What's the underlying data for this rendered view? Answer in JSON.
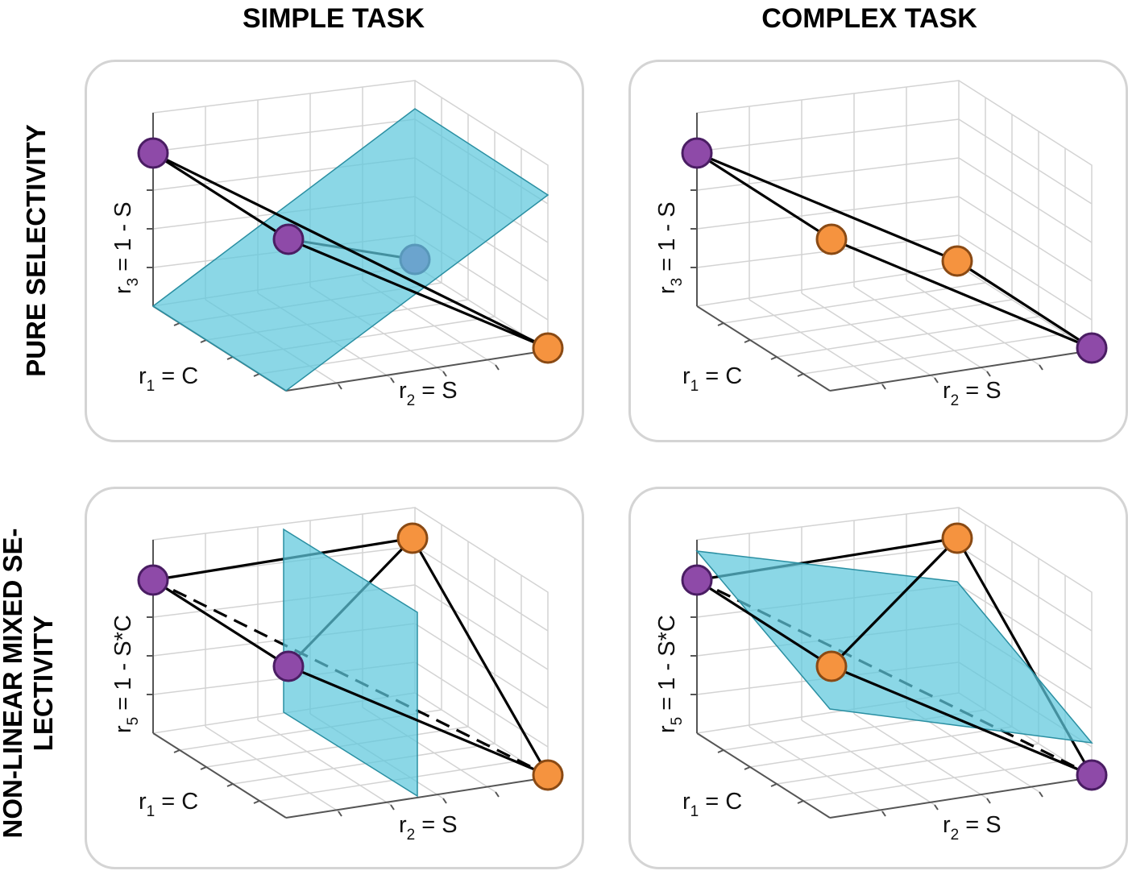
{
  "columns": {
    "left": "SIMPLE TASK",
    "right": "COMPLEX TASK"
  },
  "rows": {
    "top": "PURE SELECTIVITY",
    "bottom_line1": "NON-LINEAR MIXED SE-",
    "bottom_line2": "LECTIVITY"
  },
  "axes": {
    "r1": {
      "name": "r",
      "sub": "1",
      "expr": " = C"
    },
    "r2": {
      "name": "r",
      "sub": "2",
      "expr": " = S"
    },
    "r3": {
      "name": "r",
      "sub": "3",
      "expr": " = 1 - S"
    },
    "r5": {
      "name": "r",
      "sub": "5",
      "expr": " = 1 - S*C"
    }
  },
  "colors": {
    "purple": "#8e4aa8",
    "purple_stroke": "#4a1d63",
    "orange": "#f5933f",
    "orange_stroke": "#8a4a14",
    "plane": "#5ec7dc",
    "plane_stroke": "#2a8fa2",
    "grid": "#cfcfcf",
    "axis": "#555555",
    "panel_border": "#d4d4d4"
  },
  "panels": [
    {
      "id": "simple-pure",
      "row": "top",
      "col": "left",
      "plane": "vertical-diagonal"
    },
    {
      "id": "complex-pure",
      "row": "top",
      "col": "right",
      "plane": "none"
    },
    {
      "id": "simple-mixed",
      "row": "bottom",
      "col": "left",
      "plane": "vertical"
    },
    {
      "id": "complex-mixed",
      "row": "bottom",
      "col": "right",
      "plane": "oblique"
    }
  ]
}
